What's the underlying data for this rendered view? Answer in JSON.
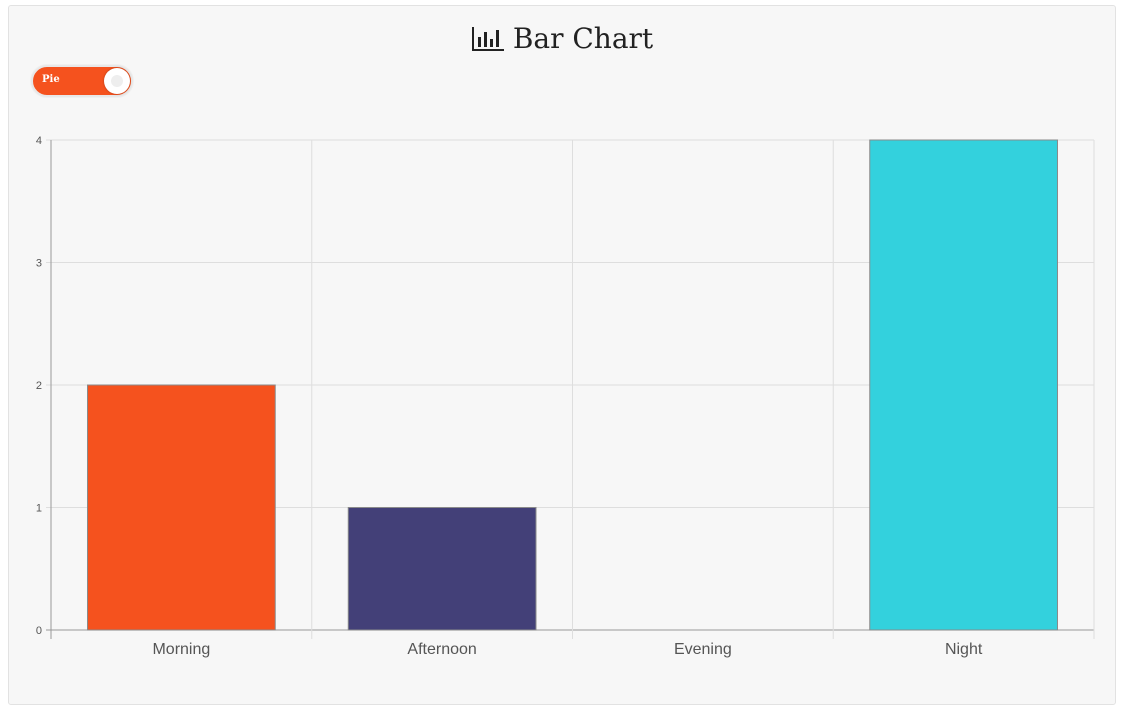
{
  "header": {
    "title": "Bar Chart",
    "icon": "bar-chart-icon"
  },
  "toggle": {
    "label": "Pie",
    "accent": "#f5521e"
  },
  "chart_data": {
    "type": "bar",
    "categories": [
      "Morning",
      "Afternoon",
      "Evening",
      "Night"
    ],
    "values": [
      2,
      1,
      0,
      4
    ],
    "colors": [
      "#f5521e",
      "#434078",
      "#d9d9d9",
      "#33d1dd"
    ],
    "ylim": [
      0,
      4
    ],
    "yticks": [
      0,
      1,
      2,
      3,
      4
    ],
    "grid": true,
    "legend": "none"
  }
}
